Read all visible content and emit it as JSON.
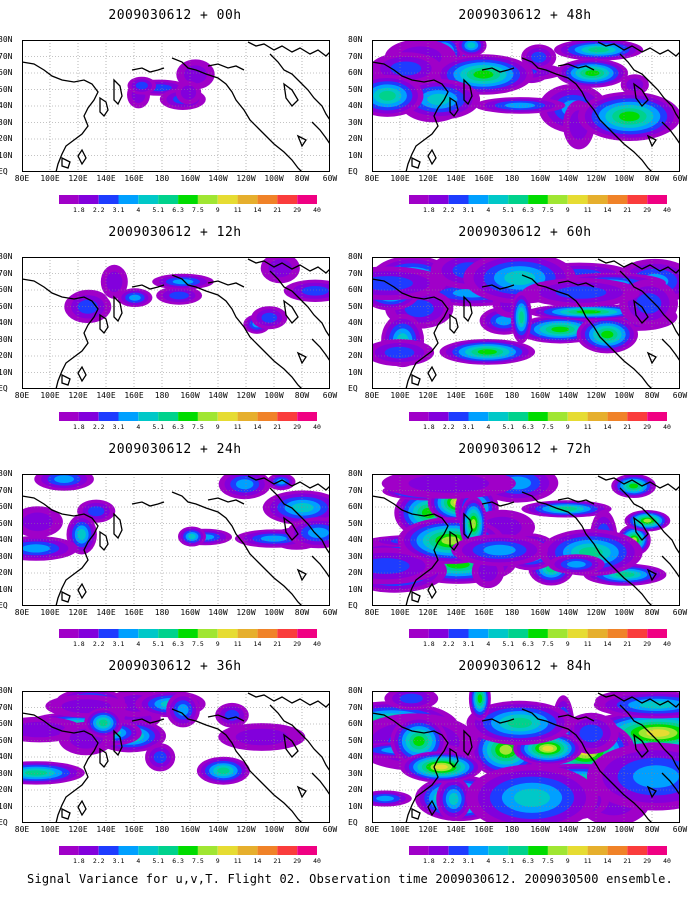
{
  "caption": "Signal Variance for u,v,T. Flight 02. Observation time 2009030612. 2009030500 ensemble.",
  "y_tick_labels": [
    "80N",
    "70N",
    "60N",
    "50N",
    "40N",
    "30N",
    "20N",
    "10N",
    "EQ"
  ],
  "x_tick_labels": [
    "80E",
    "100E",
    "120E",
    "140E",
    "160E",
    "180",
    "160W",
    "140W",
    "120W",
    "100W",
    "80W",
    "60W"
  ],
  "colorbar": {
    "levels": [
      "1.8",
      "2.2",
      "3.1",
      "4",
      "5.1",
      "6.3",
      "7.5",
      "9",
      "11",
      "14",
      "21",
      "29",
      "40"
    ],
    "colors": [
      "#a000c8",
      "#8200dc",
      "#1e3cff",
      "#00a0ff",
      "#00c8c8",
      "#00d28c",
      "#00dc00",
      "#a0e632",
      "#e6dc32",
      "#e6af2d",
      "#f08228",
      "#fa3c3c",
      "#f00082"
    ]
  },
  "panels": [
    {
      "title": "2009030612 + 00h",
      "lead_hours": 0
    },
    {
      "title": "2009030612 + 48h",
      "lead_hours": 48
    },
    {
      "title": "2009030612 + 12h",
      "lead_hours": 12
    },
    {
      "title": "2009030612 + 60h",
      "lead_hours": 60
    },
    {
      "title": "2009030612 + 24h",
      "lead_hours": 24
    },
    {
      "title": "2009030612 + 72h",
      "lead_hours": 72
    },
    {
      "title": "2009030612 + 36h",
      "lead_hours": 36
    },
    {
      "title": "2009030612 + 84h",
      "lead_hours": 84
    }
  ]
}
